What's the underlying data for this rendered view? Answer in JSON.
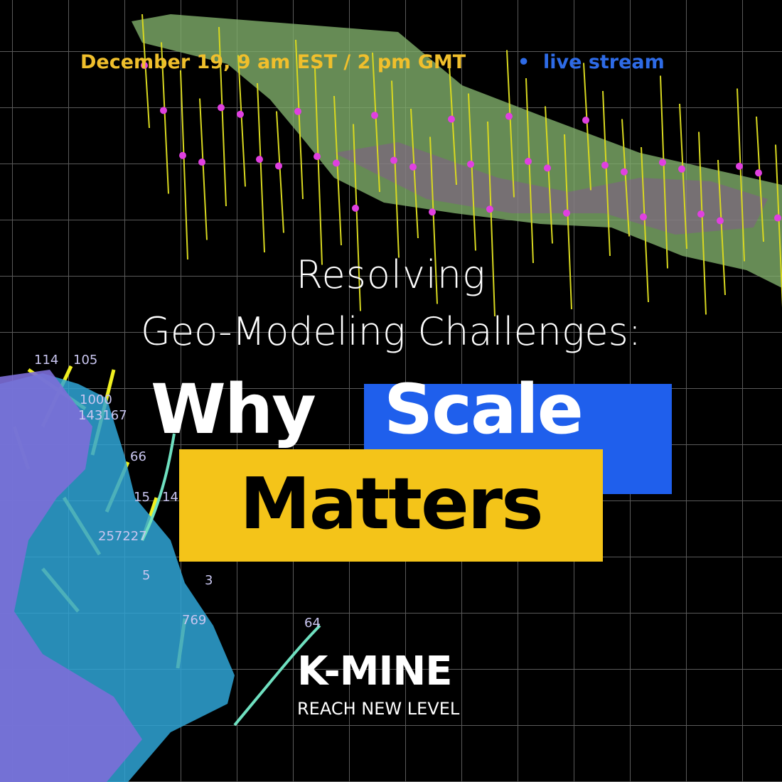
{
  "header": {
    "date": "December 19, 9 am EST / 2 pm GMT",
    "bullet": "•",
    "format": "live stream"
  },
  "title": {
    "line1": "Resolving",
    "line2": "Geo-Modeling Challenges:",
    "word1": "Why",
    "word2": "Scale",
    "word3": "Matters"
  },
  "logo": {
    "name": "K-MINE",
    "tagline": "REACH NEW LEVEL"
  },
  "model_labels": [
    "114",
    "105",
    "1000",
    "143167",
    "66",
    "15",
    "14",
    "257227",
    "5",
    "3",
    "769",
    "64"
  ]
}
